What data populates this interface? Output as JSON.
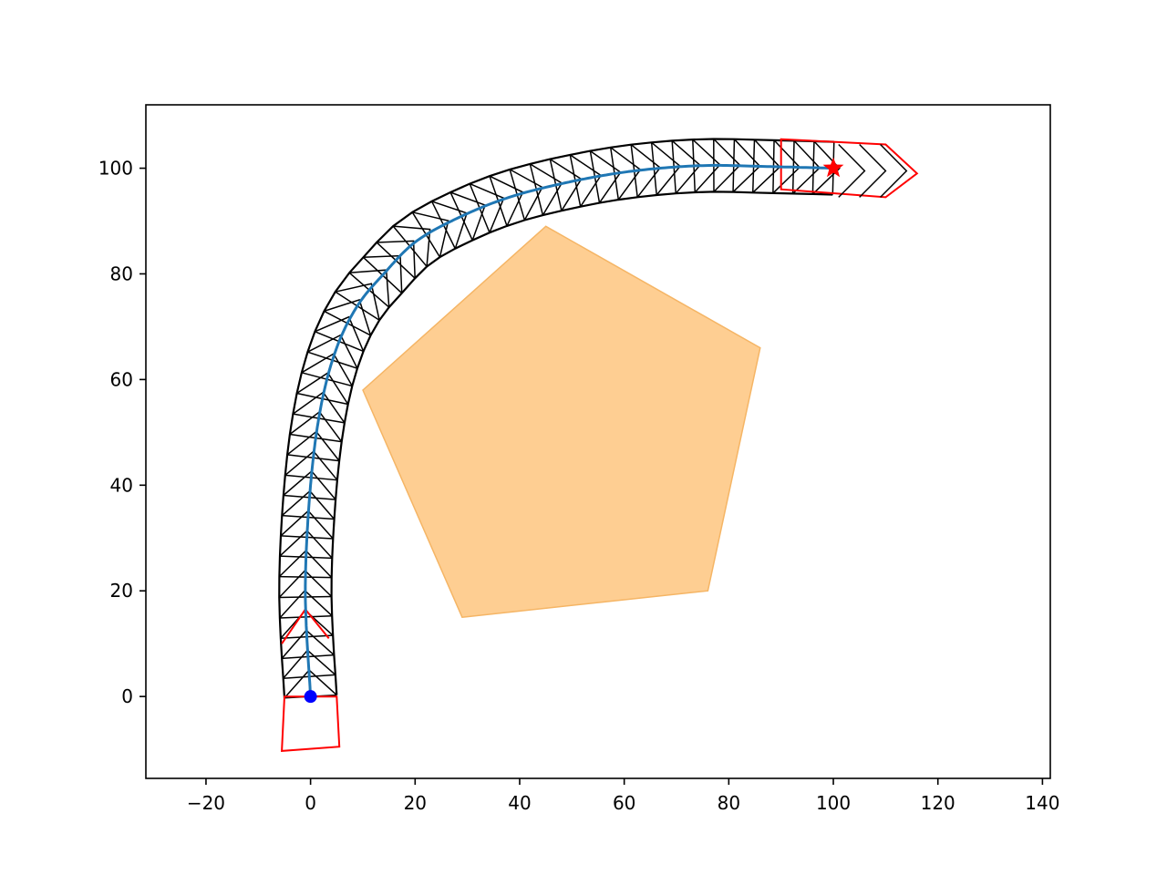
{
  "chart_data": {
    "type": "scatter",
    "title": "",
    "xlabel": "",
    "ylabel": "",
    "xlim": [
      -31.5,
      141.5
    ],
    "ylim": [
      -15.5,
      112
    ],
    "grid": false,
    "legend": "none",
    "x_ticks": [
      -20,
      0,
      20,
      40,
      60,
      80,
      100,
      120,
      140
    ],
    "y_ticks": [
      0,
      20,
      40,
      60,
      80,
      100
    ],
    "x_tick_labels": [
      "−20",
      "0",
      "20",
      "40",
      "60",
      "80",
      "100",
      "120",
      "140"
    ],
    "y_tick_labels": [
      "0",
      "20",
      "40",
      "60",
      "80",
      "100"
    ],
    "obstacle": {
      "vertices": [
        [
          10,
          58
        ],
        [
          45,
          89
        ],
        [
          86,
          66
        ],
        [
          76,
          20
        ],
        [
          29,
          15
        ]
      ],
      "color": "#fdbe6e",
      "edge_color": "#f5b565"
    },
    "start_point": {
      "x": 0,
      "y": 0,
      "color": "#0000ff"
    },
    "goal_point": {
      "x": 100,
      "y": 100,
      "color": "#ff0000"
    },
    "path": {
      "color": "#1f77b4",
      "points": [
        [
          0,
          0
        ],
        [
          -1,
          20
        ],
        [
          0,
          40
        ],
        [
          2,
          55
        ],
        [
          5,
          66
        ],
        [
          9,
          74
        ],
        [
          14,
          80
        ],
        [
          20,
          86
        ],
        [
          28,
          90.5
        ],
        [
          38,
          94.5
        ],
        [
          50,
          97.5
        ],
        [
          62,
          99.5
        ],
        [
          75,
          100.5
        ],
        [
          88,
          100.3
        ],
        [
          100,
          100
        ]
      ]
    },
    "corridor": {
      "color": "#000000",
      "half_width": 5,
      "samples": 46,
      "chevron_length": 5
    },
    "start_vehicle": {
      "color": "#ff0000",
      "center": [
        0,
        0
      ],
      "heading": [
        0,
        1
      ]
    },
    "goal_vehicle": {
      "color": "#ff0000",
      "center": [
        100,
        100
      ],
      "heading": [
        1,
        0
      ]
    },
    "frame_color": "#000000"
  }
}
